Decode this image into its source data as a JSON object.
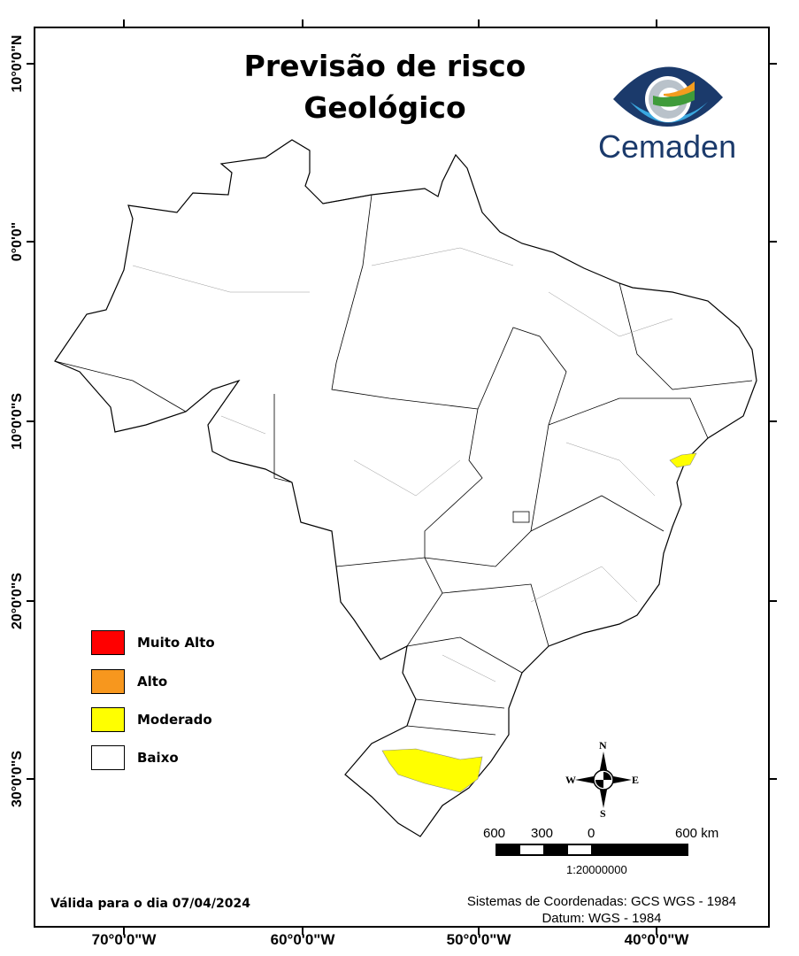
{
  "title_line1": "Previsão de risco",
  "title_line2": "Geológico",
  "logo": {
    "text": "Cemaden",
    "colors": {
      "dark_blue": "#1b3a6b",
      "light_blue": "#3aa8e0",
      "green": "#3f9b3a",
      "orange": "#f39c1e"
    }
  },
  "lat_labels": [
    "10°0'0\"N",
    "0°0'0\"",
    "10°0'0\"S",
    "20°0'0\"S",
    "30°0'0\"S"
  ],
  "lon_labels": [
    "70°0'0\"W",
    "60°0'0\"W",
    "50°0'0\"W",
    "40°0'0\"W"
  ],
  "legend": [
    {
      "label": "Muito Alto",
      "color": "#ff0000"
    },
    {
      "label": "Alto",
      "color": "#f7971e"
    },
    {
      "label": "Moderado",
      "color": "#ffff00"
    },
    {
      "label": "Baixo",
      "color": "#ffffff"
    }
  ],
  "north_arrow": {
    "n": "N",
    "s": "S",
    "e": "E",
    "w": "W"
  },
  "scale_bar": {
    "labels": [
      "600",
      "300",
      "0",
      "600 km"
    ],
    "ratio": "1:20000000"
  },
  "valid_label": "Válida para o dia",
  "valid_date": "07/04/2024",
  "crs": "Sistemas de Coordenadas: GCS WGS - 1984",
  "datum": "Datum: WGS - 1984",
  "risk_regions": [
    {
      "area": "Rio Grande do Sul (centro-leste)",
      "level": "Moderado"
    },
    {
      "area": "Bahia (litoral)",
      "level": "Moderado"
    }
  ]
}
